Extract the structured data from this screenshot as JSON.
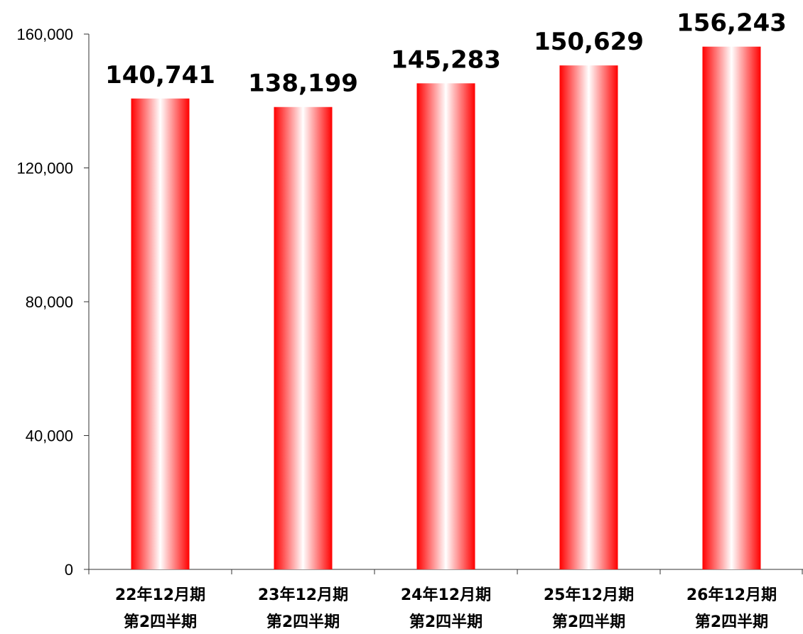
{
  "chart_data": {
    "type": "bar",
    "title": "",
    "xlabel": "",
    "ylabel": "",
    "categories": [
      [
        "22年12月期",
        "第2四半期"
      ],
      [
        "23年12月期",
        "第2四半期"
      ],
      [
        "24年12月期",
        "第2四半期"
      ],
      [
        "25年12月期",
        "第2四半期"
      ],
      [
        "26年12月期",
        "第2四半期"
      ]
    ],
    "values": [
      140741,
      138199,
      145283,
      150629,
      156243
    ],
    "data_labels": [
      "140,741",
      "138,199",
      "145,283",
      "150,629",
      "156,243"
    ],
    "ylim": [
      0,
      160000
    ],
    "yticks": [
      0,
      40000,
      80000,
      120000,
      160000
    ],
    "ytick_labels": [
      "0",
      "40,000",
      "80,000",
      "120,000",
      "160,000"
    ],
    "grid": false,
    "legend": "none",
    "colors": {
      "bar_edge": "#ff0000",
      "bar_center": "#ffffff",
      "axis": "#333333",
      "text": "#000000"
    }
  }
}
